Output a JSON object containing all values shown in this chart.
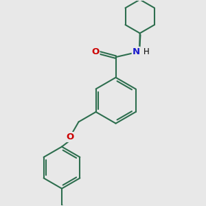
{
  "bg_color": "#e8e8e8",
  "bond_color": "#2d6e4e",
  "O_color": "#cc0000",
  "N_color": "#1a1acc",
  "lw": 1.5,
  "doff": 0.048,
  "figsize": [
    3.0,
    3.0
  ],
  "dpi": 100,
  "xlim": [
    -3.5,
    3.5
  ],
  "ylim": [
    -4.2,
    3.8
  ]
}
